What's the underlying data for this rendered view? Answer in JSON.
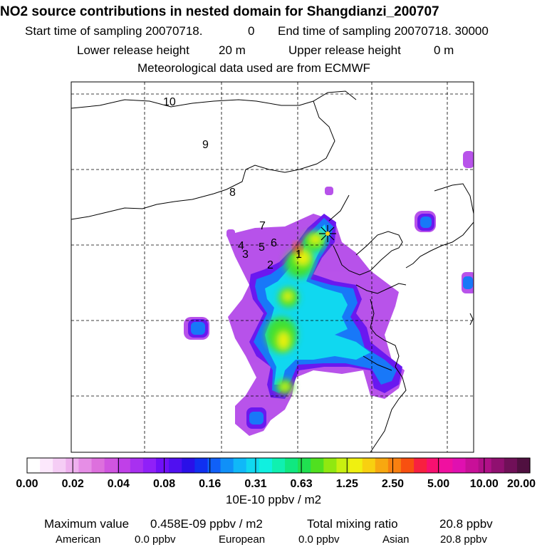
{
  "header": {
    "title": "NO2 source contributions in nested domain for Shangdianzi_200707",
    "start_label": "Start time of sampling 20070718.",
    "start_value": "0",
    "end_label": "End time of sampling 20070718. 30000",
    "lower_label": "Lower release height",
    "lower_value": "20 m",
    "upper_label": "Upper release height",
    "upper_value": "0 m",
    "met_label": "Meteorological data used are from ECMWF"
  },
  "chart_data": {
    "type": "heatmap",
    "source_marker": "asterisk-yellow",
    "region_labels": [
      "10",
      "9",
      "8",
      "7",
      "4",
      "5",
      "6",
      "3",
      "2",
      "1"
    ],
    "colorbar": {
      "unit_label": "10E-10 ppbv / m2",
      "tick_labels": [
        "0.00",
        "0.02",
        "0.04",
        "0.08",
        "0.16",
        "0.31",
        "0.63",
        "1.25",
        "2.50",
        "5.00",
        "10.00",
        "20.00"
      ],
      "colors": [
        "#ffffff",
        "#fce8fc",
        "#f5cdf5",
        "#eeb0ee",
        "#e68ee6",
        "#dd70dd",
        "#d055e0",
        "#c040e8",
        "#a830f0",
        "#9020f8",
        "#7010f8",
        "#5010f0",
        "#2a10e8",
        "#1030f0",
        "#1060f8",
        "#1090f8",
        "#10b8f8",
        "#10d8f0",
        "#10f0e0",
        "#10f0b0",
        "#10e880",
        "#20e050",
        "#50e020",
        "#90e810",
        "#c8f010",
        "#f0f010",
        "#f8d010",
        "#f8a810",
        "#f88010",
        "#f85010",
        "#f82040",
        "#f81070",
        "#f010a0",
        "#e010b0",
        "#c81098",
        "#b01088",
        "#901070",
        "#701058",
        "#501040"
      ]
    }
  },
  "footer": {
    "max_label": "Maximum value",
    "max_value": "0.458E-09 ppbv / m2",
    "total_label": "Total mixing ratio",
    "total_value": "20.8 ppbv",
    "american_label": "American",
    "american_value": "0.0 ppbv",
    "european_label": "European",
    "european_value": "0.0 ppbv",
    "asian_label": "Asian",
    "asian_value": "20.8 ppbv"
  }
}
